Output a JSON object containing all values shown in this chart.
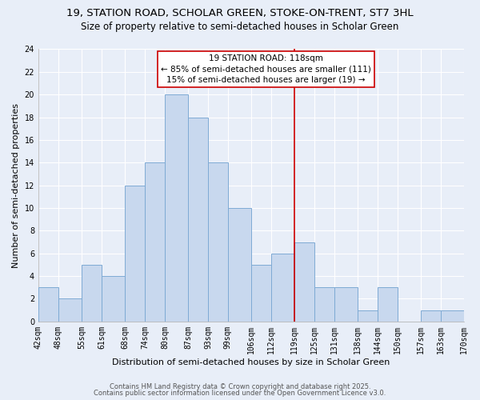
{
  "title_line1": "19, STATION ROAD, SCHOLAR GREEN, STOKE-ON-TRENT, ST7 3HL",
  "title_line2": "Size of property relative to semi-detached houses in Scholar Green",
  "xlabel": "Distribution of semi-detached houses by size in Scholar Green",
  "ylabel": "Number of semi-detached properties",
  "bin_edges": [
    42,
    48,
    55,
    61,
    68,
    74,
    80,
    87,
    93,
    99,
    106,
    112,
    119,
    125,
    131,
    138,
    144,
    150,
    157,
    163,
    170
  ],
  "bar_heights": [
    3,
    2,
    5,
    4,
    12,
    14,
    20,
    18,
    14,
    10,
    5,
    6,
    7,
    3,
    3,
    1,
    3,
    0,
    1,
    1
  ],
  "bar_facecolor": "#c8d8ee",
  "bar_edgecolor": "#7eaad4",
  "vline_x": 119,
  "vline_color": "#cc0000",
  "ylim": [
    0,
    24
  ],
  "yticks": [
    0,
    2,
    4,
    6,
    8,
    10,
    12,
    14,
    16,
    18,
    20,
    22,
    24
  ],
  "annotation_title": "19 STATION ROAD: 118sqm",
  "annotation_line2": "← 85% of semi-detached houses are smaller (111)",
  "annotation_line3": "15% of semi-detached houses are larger (19) →",
  "annotation_box_facecolor": "#ffffff",
  "annotation_box_edgecolor": "#cc0000",
  "footnote1": "Contains HM Land Registry data © Crown copyright and database right 2025.",
  "footnote2": "Contains public sector information licensed under the Open Government Licence v3.0.",
  "background_color": "#e8eef8",
  "grid_color": "#ffffff",
  "title_fontsize": 9.5,
  "subtitle_fontsize": 8.5,
  "tick_label_fontsize": 7,
  "axis_label_fontsize": 8,
  "footnote_fontsize": 6,
  "annotation_fontsize": 7.5
}
